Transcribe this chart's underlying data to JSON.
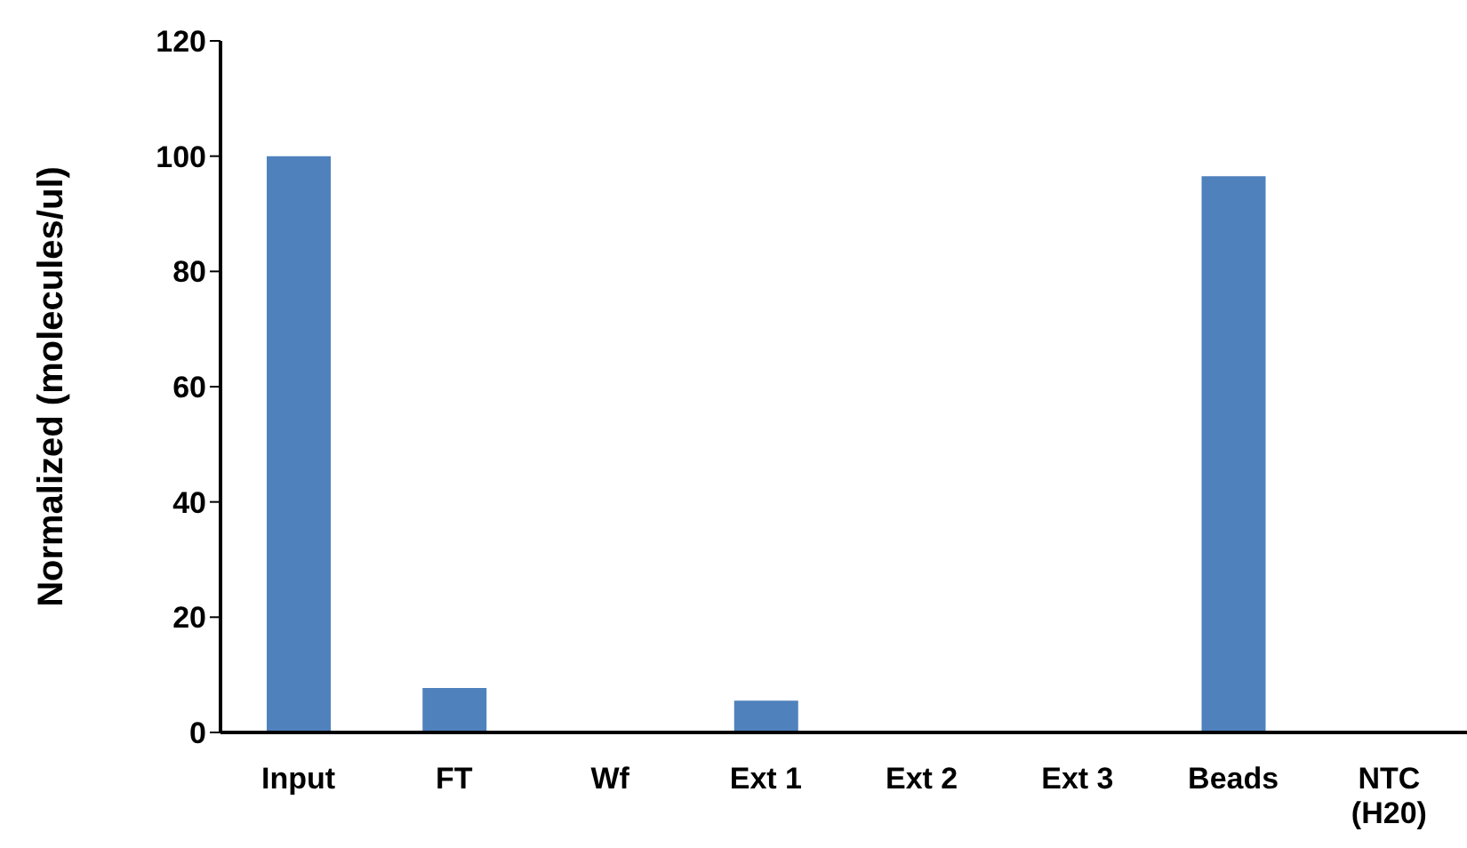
{
  "chart_data": {
    "type": "bar",
    "ylabel": "Normalized (molecules/ul)",
    "categories": [
      "Input",
      "FT",
      "Wf",
      "Ext 1",
      "Ext 2",
      "Ext 3",
      "Beads",
      "NTC\n(H20)"
    ],
    "values": [
      100,
      7.7,
      0,
      5.5,
      0,
      0,
      96.5,
      0
    ],
    "color": "#4f81bd",
    "ylim": [
      0,
      120
    ],
    "yticks": [
      0,
      20,
      40,
      60,
      80,
      100,
      120
    ],
    "grid": false,
    "legend": false
  }
}
